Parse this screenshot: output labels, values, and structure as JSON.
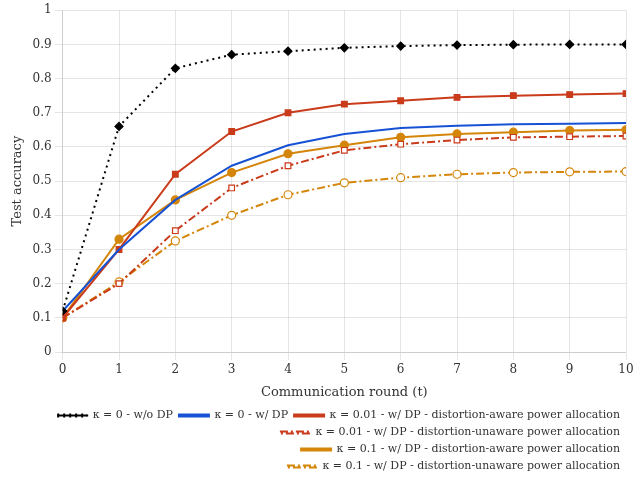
{
  "chart_data": {
    "type": "line",
    "xlabel": "Communication round (t)",
    "ylabel": "Test accuracy",
    "x": [
      0,
      1,
      2,
      3,
      4,
      5,
      6,
      7,
      8,
      9,
      10
    ],
    "series": [
      {
        "name": "κ = 0 - w/o DP",
        "color": "#000000",
        "marker": "diamond",
        "line_style": "dotted",
        "values": [
          0.12,
          0.66,
          0.83,
          0.87,
          0.88,
          0.89,
          0.895,
          0.898,
          0.899,
          0.9,
          0.9
        ]
      },
      {
        "name": "κ = 0 - w/ DP",
        "color": "#1752d4",
        "marker": "none",
        "line_style": "solid",
        "values": [
          0.12,
          0.3,
          0.445,
          0.545,
          0.605,
          0.638,
          0.655,
          0.662,
          0.666,
          0.668,
          0.67
        ]
      },
      {
        "name": "κ = 0.01 - w/ DP - distortion-aware power allocation",
        "color": "#c93b1a",
        "marker": "square",
        "line_style": "solid",
        "values": [
          0.1,
          0.3,
          0.52,
          0.645,
          0.7,
          0.725,
          0.735,
          0.745,
          0.75,
          0.753,
          0.756
        ]
      },
      {
        "name": "κ = 0.01 - w/ DP - distortion-unaware power allocation",
        "color": "#c93b1a",
        "marker": "square-open",
        "line_style": "dashdot",
        "values": [
          0.1,
          0.2,
          0.355,
          0.48,
          0.545,
          0.59,
          0.608,
          0.62,
          0.628,
          0.63,
          0.632
        ]
      },
      {
        "name": "κ = 0.1 - w/ DP - distortion-aware power allocation",
        "color": "#d4860a",
        "marker": "circle",
        "line_style": "solid",
        "values": [
          0.1,
          0.33,
          0.445,
          0.525,
          0.58,
          0.605,
          0.628,
          0.638,
          0.643,
          0.648,
          0.65
        ]
      },
      {
        "name": "κ = 0.1 - w/ DP - distortion-unaware power allocation",
        "color": "#d4860a",
        "marker": "circle-open",
        "line_style": "dashdot",
        "values": [
          0.1,
          0.205,
          0.325,
          0.4,
          0.46,
          0.495,
          0.51,
          0.52,
          0.525,
          0.527,
          0.528
        ]
      }
    ],
    "xlim": [
      0,
      10
    ],
    "ylim": [
      0,
      1
    ],
    "xticks": [
      0,
      1,
      2,
      3,
      4,
      5,
      6,
      7,
      8,
      9,
      10
    ],
    "yticks": [
      0,
      0.1,
      0.2,
      0.3,
      0.4,
      0.5,
      0.6,
      0.7,
      0.8,
      0.9,
      1
    ],
    "grid": true,
    "legend": "lower right"
  }
}
